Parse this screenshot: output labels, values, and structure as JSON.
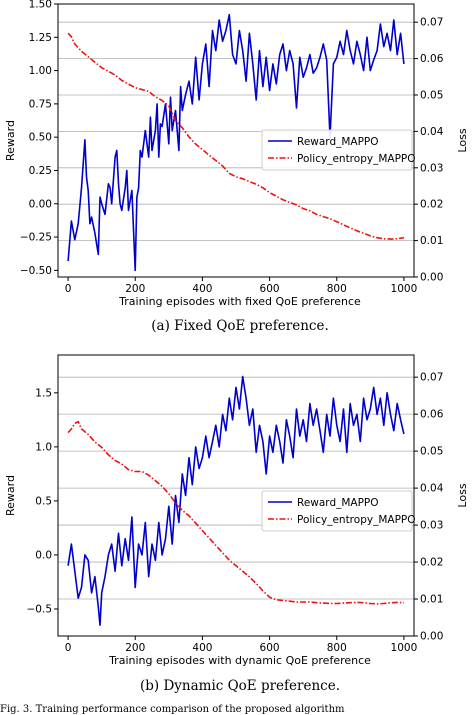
{
  "chart_data": [
    {
      "type": "line",
      "xlabel": "Training episodes with fixed QoE preference",
      "ylabel": "Reward",
      "ylabel_right": "Loss",
      "caption": "(a)  Fixed QoE preference.",
      "xlim": [
        -30,
        1030
      ],
      "ylim": [
        -0.55,
        1.5
      ],
      "ylim_right": [
        0,
        0.075
      ],
      "xticks": [
        0,
        200,
        400,
        600,
        800,
        1000
      ],
      "yticks": [
        -0.5,
        -0.25,
        0.0,
        0.25,
        0.5,
        0.75,
        1.0,
        1.25,
        1.5
      ],
      "yticks_right": [
        0.0,
        0.01,
        0.02,
        0.03,
        0.04,
        0.05,
        0.06,
        0.07
      ],
      "ytick_labels": [
        "−0.50",
        "−0.25",
        "0.00",
        "0.25",
        "0.50",
        "0.75",
        "1.00",
        "1.25",
        "1.50"
      ],
      "ytick_right_labels": [
        "0.00",
        "0.01",
        "0.02",
        "0.03",
        "0.04",
        "0.05",
        "0.06",
        "0.07"
      ],
      "grid": "right-axis horizontal",
      "legend_placement": "center-right",
      "series": [
        {
          "name": "Reward_MAPPO",
          "axis": "left",
          "color": "#0000cc",
          "style": "solid",
          "x": [
            0,
            10,
            20,
            30,
            40,
            50,
            55,
            60,
            65,
            70,
            80,
            90,
            95,
            100,
            110,
            120,
            125,
            130,
            140,
            145,
            150,
            155,
            160,
            170,
            175,
            180,
            190,
            200,
            205,
            210,
            215,
            220,
            230,
            240,
            245,
            250,
            260,
            265,
            270,
            275,
            280,
            290,
            300,
            305,
            310,
            320,
            330,
            335,
            340,
            350,
            360,
            370,
            380,
            390,
            400,
            410,
            420,
            430,
            440,
            450,
            460,
            470,
            480,
            490,
            500,
            510,
            520,
            530,
            540,
            550,
            560,
            570,
            580,
            590,
            600,
            610,
            620,
            630,
            640,
            650,
            660,
            670,
            680,
            690,
            700,
            710,
            720,
            730,
            740,
            750,
            760,
            770,
            780,
            790,
            800,
            810,
            820,
            830,
            840,
            850,
            860,
            870,
            880,
            890,
            900,
            910,
            920,
            930,
            940,
            950,
            960,
            970,
            980,
            990,
            1000
          ],
          "y": [
            -0.43,
            -0.13,
            -0.27,
            -0.15,
            0.12,
            0.48,
            0.2,
            0.1,
            -0.15,
            -0.1,
            -0.22,
            -0.38,
            0.05,
            0.0,
            -0.08,
            0.15,
            0.12,
            0.0,
            0.35,
            0.4,
            0.15,
            0.0,
            -0.05,
            0.12,
            0.25,
            -0.05,
            0.1,
            -0.5,
            0.05,
            0.12,
            0.4,
            0.35,
            0.55,
            0.35,
            0.65,
            0.4,
            0.55,
            0.75,
            0.35,
            0.6,
            0.58,
            0.75,
            0.45,
            0.8,
            0.55,
            0.7,
            0.4,
            0.88,
            0.7,
            0.82,
            0.92,
            0.75,
            1.1,
            0.78,
            1.05,
            1.2,
            0.88,
            1.3,
            1.15,
            1.38,
            1.22,
            1.3,
            1.42,
            1.12,
            1.05,
            1.3,
            1.15,
            0.92,
            1.28,
            1.05,
            0.78,
            1.15,
            0.88,
            1.1,
            0.85,
            1.05,
            0.9,
            1.12,
            1.2,
            1.0,
            1.15,
            1.05,
            0.72,
            1.1,
            0.95,
            1.02,
            1.12,
            0.98,
            1.02,
            1.1,
            1.2,
            1.08,
            0.5,
            1.05,
            1.1,
            1.22,
            1.12,
            1.3,
            1.15,
            1.05,
            1.22,
            1.12,
            1.0,
            1.25,
            1.0,
            1.08,
            1.15,
            1.35,
            1.18,
            1.28,
            1.15,
            1.38,
            1.12,
            1.28,
            1.05
          ]
        },
        {
          "name": "Policy_entropy_MAPPO",
          "axis": "right",
          "color": "#ee1111",
          "style": "dashdot",
          "x": [
            0,
            10,
            20,
            30,
            40,
            60,
            80,
            100,
            120,
            140,
            160,
            180,
            200,
            220,
            240,
            260,
            280,
            300,
            310,
            320,
            340,
            360,
            380,
            400,
            420,
            440,
            460,
            480,
            500,
            520,
            540,
            560,
            580,
            600,
            620,
            640,
            660,
            680,
            700,
            720,
            740,
            760,
            780,
            800,
            820,
            840,
            860,
            880,
            900,
            920,
            940,
            960,
            980,
            1000
          ],
          "y": [
            0.067,
            0.066,
            0.064,
            0.063,
            0.062,
            0.0605,
            0.059,
            0.0575,
            0.0565,
            0.0555,
            0.054,
            0.053,
            0.052,
            0.0515,
            0.051,
            0.0495,
            0.0485,
            0.047,
            0.045,
            0.043,
            0.041,
            0.0385,
            0.0365,
            0.035,
            0.0335,
            0.032,
            0.0305,
            0.0285,
            0.0275,
            0.027,
            0.0262,
            0.0255,
            0.0245,
            0.0232,
            0.0222,
            0.0212,
            0.0205,
            0.0198,
            0.0188,
            0.0182,
            0.0172,
            0.0166,
            0.016,
            0.0152,
            0.0143,
            0.0135,
            0.0127,
            0.012,
            0.0113,
            0.0108,
            0.0105,
            0.0104,
            0.0105,
            0.0108
          ]
        }
      ]
    },
    {
      "type": "line",
      "xlabel": "Training episodes with dynamic QoE preference",
      "ylabel": "Reward",
      "ylabel_right": "Loss",
      "caption": "(b)  Dynamic QoE preference.",
      "xlim": [
        -30,
        1030
      ],
      "ylim": [
        -0.75,
        1.85
      ],
      "ylim_right": [
        0,
        0.076
      ],
      "xticks": [
        0,
        200,
        400,
        600,
        800,
        1000
      ],
      "yticks": [
        -0.5,
        0.0,
        0.5,
        1.0,
        1.5
      ],
      "yticks_right": [
        0.0,
        0.01,
        0.02,
        0.03,
        0.04,
        0.05,
        0.06,
        0.07
      ],
      "ytick_labels": [
        "−0.5",
        "0.0",
        "0.5",
        "1.0",
        "1.5"
      ],
      "ytick_right_labels": [
        "0.00",
        "0.01",
        "0.02",
        "0.03",
        "0.04",
        "0.05",
        "0.06",
        "0.07"
      ],
      "grid": "right-axis horizontal",
      "legend_placement": "center-right",
      "series": [
        {
          "name": "Reward_MAPPO",
          "axis": "left",
          "color": "#0000cc",
          "style": "solid",
          "x": [
            0,
            10,
            20,
            30,
            40,
            50,
            60,
            70,
            80,
            90,
            95,
            100,
            110,
            120,
            130,
            140,
            150,
            160,
            170,
            180,
            190,
            200,
            210,
            220,
            230,
            240,
            250,
            260,
            270,
            280,
            290,
            300,
            310,
            320,
            330,
            340,
            350,
            360,
            370,
            380,
            390,
            400,
            410,
            420,
            430,
            440,
            450,
            460,
            470,
            480,
            490,
            500,
            510,
            520,
            530,
            540,
            550,
            560,
            570,
            580,
            590,
            600,
            610,
            620,
            630,
            640,
            650,
            660,
            670,
            680,
            690,
            700,
            710,
            720,
            730,
            740,
            750,
            760,
            770,
            780,
            790,
            800,
            810,
            820,
            830,
            840,
            850,
            860,
            870,
            880,
            890,
            900,
            910,
            920,
            930,
            940,
            950,
            960,
            970,
            980,
            990,
            1000
          ],
          "y": [
            -0.1,
            0.1,
            -0.15,
            -0.4,
            -0.3,
            0.0,
            -0.05,
            -0.35,
            -0.2,
            -0.48,
            -0.65,
            -0.35,
            -0.2,
            0.0,
            0.1,
            -0.15,
            0.2,
            -0.1,
            0.15,
            -0.05,
            0.35,
            -0.3,
            0.1,
            0.0,
            0.3,
            -0.2,
            0.1,
            -0.05,
            0.3,
            0.0,
            0.15,
            0.45,
            0.1,
            0.55,
            0.3,
            0.75,
            0.55,
            0.9,
            0.65,
            1.0,
            0.8,
            0.9,
            1.1,
            0.9,
            1.05,
            1.2,
            1.0,
            1.3,
            1.15,
            1.45,
            1.25,
            1.55,
            1.35,
            1.65,
            1.45,
            1.2,
            1.35,
            0.95,
            1.2,
            1.05,
            0.75,
            1.1,
            0.95,
            1.2,
            1.05,
            0.85,
            1.25,
            1.1,
            0.9,
            1.35,
            1.1,
            1.25,
            1.05,
            1.4,
            1.2,
            1.35,
            1.15,
            0.95,
            1.3,
            1.1,
            1.45,
            1.2,
            1.05,
            1.35,
            0.95,
            1.4,
            1.2,
            1.3,
            1.05,
            1.45,
            1.25,
            1.35,
            1.55,
            1.3,
            1.45,
            1.2,
            1.5,
            1.3,
            1.15,
            1.4,
            1.25,
            1.12
          ]
        },
        {
          "name": "Policy_entropy_MAPPO",
          "axis": "right",
          "color": "#ee1111",
          "style": "dashdot",
          "x": [
            0,
            10,
            20,
            30,
            40,
            60,
            80,
            100,
            120,
            140,
            160,
            180,
            200,
            220,
            240,
            260,
            280,
            300,
            320,
            340,
            360,
            380,
            400,
            420,
            440,
            460,
            480,
            500,
            520,
            540,
            560,
            580,
            600,
            620,
            640,
            660,
            680,
            700,
            720,
            740,
            760,
            780,
            800,
            820,
            840,
            860,
            880,
            900,
            920,
            940,
            960,
            980,
            1000
          ],
          "y": [
            0.055,
            0.056,
            0.0575,
            0.058,
            0.056,
            0.0545,
            0.0525,
            0.051,
            0.049,
            0.0475,
            0.0465,
            0.045,
            0.0445,
            0.0445,
            0.0435,
            0.042,
            0.0405,
            0.0385,
            0.036,
            0.034,
            0.0325,
            0.0305,
            0.0285,
            0.0265,
            0.0245,
            0.0225,
            0.0205,
            0.019,
            0.0175,
            0.016,
            0.0142,
            0.0122,
            0.0105,
            0.0098,
            0.0096,
            0.0094,
            0.0092,
            0.0092,
            0.0092,
            0.009,
            0.0089,
            0.0088,
            0.0088,
            0.0089,
            0.009,
            0.0091,
            0.009,
            0.0088,
            0.0087,
            0.0088,
            0.009,
            0.0091,
            0.009
          ]
        }
      ]
    }
  ],
  "footer": {
    "text": "Fig. 3.   Training performance comparison of the proposed algorithm"
  }
}
